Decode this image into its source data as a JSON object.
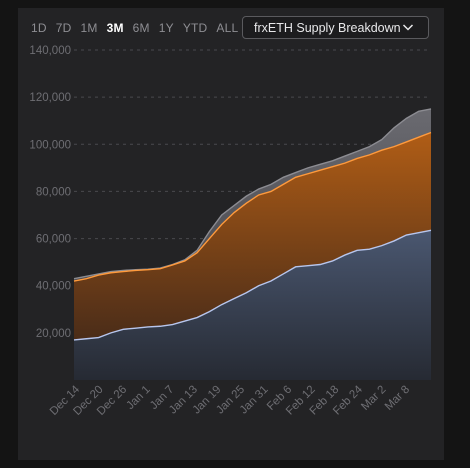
{
  "toolbar": {
    "ranges": [
      "1D",
      "7D",
      "1M",
      "3M",
      "6M",
      "1Y",
      "YTD",
      "ALL"
    ],
    "active_range": "3M"
  },
  "dropdown": {
    "selected": "frxETH Supply Breakdown",
    "icon": "chevron-down-icon"
  },
  "colors": {
    "background": "#232325",
    "grid": "#4a4a4e",
    "axis_text": "#6e6e73",
    "total_line": "#8c8c92",
    "orange_line": "#ff9a3c",
    "blue_line": "#b7c6ee"
  },
  "chart_data": {
    "type": "area",
    "title": "",
    "xlabel": "",
    "ylabel": "",
    "ylim": [
      0,
      140000
    ],
    "y_ticks": [
      "20,000",
      "40,000",
      "60,000",
      "80,000",
      "100,000",
      "120,000",
      "140,000"
    ],
    "y_tick_values": [
      20000,
      40000,
      60000,
      80000,
      100000,
      120000,
      140000
    ],
    "x_ticks": [
      "Dec 14",
      "Dec 20",
      "Dec 26",
      "Jan 1",
      "Jan 7",
      "Jan 13",
      "Jan 19",
      "Jan 25",
      "Jan 31",
      "Feb 6",
      "Feb 12",
      "Feb 18",
      "Feb 24",
      "Mar 2",
      "Mar 8"
    ],
    "grid": true,
    "legend": "none",
    "x": [
      "Dec 14",
      "Dec 17",
      "Dec 20",
      "Dec 23",
      "Dec 26",
      "Dec 29",
      "Jan 1",
      "Jan 4",
      "Jan 7",
      "Jan 10",
      "Jan 13",
      "Jan 16",
      "Jan 19",
      "Jan 22",
      "Jan 25",
      "Jan 28",
      "Jan 31",
      "Feb 3",
      "Feb 6",
      "Feb 9",
      "Feb 12",
      "Feb 15",
      "Feb 18",
      "Feb 21",
      "Feb 24",
      "Feb 27",
      "Mar 2",
      "Mar 5",
      "Mar 8",
      "Mar 11"
    ],
    "series": [
      {
        "values": [
          43000,
          44000,
          45000,
          46000,
          46500,
          46800,
          47000,
          47500,
          49000,
          51000,
          55000,
          63000,
          70000,
          74000,
          78000,
          81000,
          83000,
          86000,
          88000,
          90000,
          91500,
          93000,
          95000,
          97000,
          99000,
          102000,
          107000,
          111000,
          114000,
          115000
        ]
      },
      {
        "values": [
          42000,
          43000,
          44500,
          45500,
          46000,
          46500,
          46800,
          47200,
          48800,
          50500,
          54000,
          60000,
          66000,
          71000,
          75000,
          78500,
          80000,
          83000,
          86000,
          87500,
          89000,
          90500,
          92000,
          94000,
          95500,
          97500,
          99000,
          101000,
          103000,
          105000
        ]
      },
      {
        "values": [
          17000,
          17500,
          18000,
          20000,
          21500,
          22000,
          22500,
          22800,
          23500,
          25000,
          26500,
          29000,
          32000,
          34500,
          37000,
          40000,
          42000,
          45000,
          48000,
          48500,
          49000,
          50500,
          53000,
          55000,
          55500,
          57000,
          59000,
          61500,
          62500,
          63500
        ]
      }
    ]
  }
}
